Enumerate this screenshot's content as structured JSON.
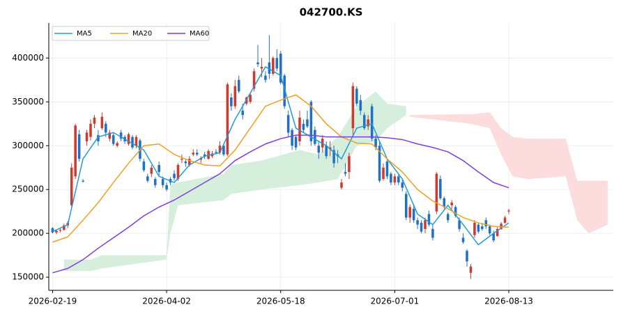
{
  "chart_data": {
    "type": "candlestick",
    "title": "042700.KS",
    "up_color": "#d0392e",
    "down_color": "#2070c8",
    "candles": [
      [
        206000,
        207000,
        200000,
        201000
      ],
      [
        201000,
        204000,
        199000,
        203000
      ],
      [
        203000,
        206000,
        201000,
        204000
      ],
      [
        204000,
        211000,
        203000,
        209000
      ],
      [
        209000,
        214000,
        206000,
        212000
      ],
      [
        232000,
        280000,
        230000,
        275000
      ],
      [
        265000,
        325000,
        262000,
        323000
      ],
      [
        313000,
        318000,
        282000,
        285000
      ],
      [
        260000,
        262000,
        258000,
        259000
      ],
      [
        305000,
        318000,
        300000,
        315000
      ],
      [
        310000,
        330000,
        306000,
        325000
      ],
      [
        325000,
        335000,
        320000,
        332000
      ],
      [
        312000,
        318000,
        300000,
        305000
      ],
      [
        320000,
        338000,
        318000,
        333000
      ],
      [
        325000,
        328000,
        310000,
        315000
      ],
      [
        308000,
        318000,
        305000,
        315000
      ],
      [
        312000,
        314000,
        300000,
        302000
      ],
      [
        300000,
        305000,
        298000,
        303000
      ],
      [
        315000,
        318000,
        305000,
        308000
      ],
      [
        310000,
        312000,
        302000,
        305000
      ],
      [
        302000,
        315000,
        300000,
        313000
      ],
      [
        310000,
        312000,
        296000,
        298000
      ],
      [
        300000,
        312000,
        297000,
        310000
      ],
      [
        306000,
        308000,
        282000,
        285000
      ],
      [
        282000,
        285000,
        270000,
        272000
      ],
      [
        265000,
        268000,
        258000,
        260000
      ],
      [
        268000,
        278000,
        264000,
        275000
      ],
      [
        262000,
        264000,
        252000,
        255000
      ],
      [
        278000,
        282000,
        265000,
        270000
      ],
      [
        262000,
        265000,
        252000,
        255000
      ],
      [
        255000,
        258000,
        248000,
        250000
      ],
      [
        262000,
        264000,
        255000,
        258000
      ],
      [
        268000,
        272000,
        260000,
        263000
      ],
      [
        262000,
        280000,
        260000,
        278000
      ],
      [
        284000,
        290000,
        280000,
        285000
      ],
      [
        282000,
        284000,
        276000,
        280000
      ],
      [
        278000,
        288000,
        276000,
        285000
      ],
      [
        290000,
        296000,
        288000,
        292000
      ],
      [
        292000,
        296000,
        288000,
        290000
      ],
      [
        284000,
        288000,
        280000,
        286000
      ],
      [
        290000,
        293000,
        285000,
        288000
      ],
      [
        285000,
        296000,
        284000,
        294000
      ],
      [
        288000,
        294000,
        286000,
        291000
      ],
      [
        293000,
        296000,
        290000,
        292000
      ],
      [
        292000,
        305000,
        290000,
        300000
      ],
      [
        300000,
        302000,
        288000,
        290000
      ],
      [
        290000,
        372000,
        288000,
        370000
      ],
      [
        355000,
        360000,
        340000,
        345000
      ],
      [
        345000,
        375000,
        342000,
        368000
      ],
      [
        375000,
        380000,
        360000,
        362000
      ],
      [
        340000,
        348000,
        330000,
        335000
      ],
      [
        348000,
        356000,
        346000,
        355000
      ],
      [
        350000,
        360000,
        348000,
        358000
      ],
      [
        365000,
        388000,
        362000,
        385000
      ],
      [
        395000,
        415000,
        390000,
        393000
      ],
      [
        388000,
        400000,
        378000,
        390000
      ],
      [
        380000,
        385000,
        372000,
        375000
      ],
      [
        395000,
        426000,
        376000,
        382000
      ],
      [
        382000,
        402000,
        380000,
        400000
      ],
      [
        400000,
        410000,
        385000,
        388000
      ],
      [
        405000,
        408000,
        370000,
        372000
      ],
      [
        380000,
        382000,
        342000,
        345000
      ],
      [
        335000,
        340000,
        310000,
        315000
      ],
      [
        318000,
        320000,
        295000,
        300000
      ],
      [
        310000,
        312000,
        295000,
        298000
      ],
      [
        305000,
        340000,
        300000,
        332000
      ],
      [
        325000,
        330000,
        315000,
        318000
      ],
      [
        330000,
        340000,
        320000,
        322000
      ],
      [
        350000,
        352000,
        300000,
        305000
      ],
      [
        318000,
        322000,
        300000,
        302000
      ],
      [
        300000,
        305000,
        285000,
        292000
      ],
      [
        298000,
        312000,
        292000,
        308000
      ],
      [
        300000,
        305000,
        285000,
        288000
      ],
      [
        296000,
        305000,
        288000,
        298000
      ],
      [
        295000,
        300000,
        275000,
        280000
      ],
      [
        290000,
        295000,
        280000,
        288000
      ],
      [
        252000,
        262000,
        250000,
        258000
      ],
      [
        270000,
        280000,
        265000,
        268000
      ],
      [
        270000,
        292000,
        262000,
        288000
      ],
      [
        320000,
        372000,
        310000,
        368000
      ],
      [
        365000,
        368000,
        345000,
        348000
      ],
      [
        352000,
        358000,
        335000,
        340000
      ],
      [
        335000,
        338000,
        318000,
        320000
      ],
      [
        322000,
        335000,
        318000,
        330000
      ],
      [
        345000,
        348000,
        305000,
        308000
      ],
      [
        308000,
        312000,
        295000,
        298000
      ],
      [
        300000,
        305000,
        258000,
        260000
      ],
      [
        262000,
        280000,
        260000,
        275000
      ],
      [
        282000,
        285000,
        262000,
        265000
      ],
      [
        268000,
        270000,
        255000,
        258000
      ],
      [
        258000,
        268000,
        255000,
        265000
      ],
      [
        265000,
        267000,
        255000,
        258000
      ],
      [
        258000,
        262000,
        248000,
        252000
      ],
      [
        245000,
        248000,
        215000,
        218000
      ],
      [
        218000,
        233000,
        212000,
        230000
      ],
      [
        228000,
        232000,
        212000,
        215000
      ],
      [
        215000,
        218000,
        205000,
        210000
      ],
      [
        212000,
        215000,
        200000,
        202000
      ],
      [
        205000,
        218000,
        200000,
        215000
      ],
      [
        222000,
        226000,
        208000,
        210000
      ],
      [
        205000,
        210000,
        192000,
        195000
      ],
      [
        225000,
        270000,
        222000,
        268000
      ],
      [
        262000,
        266000,
        238000,
        240000
      ],
      [
        240000,
        242000,
        228000,
        230000
      ],
      [
        222000,
        224000,
        212000,
        215000
      ],
      [
        232000,
        238000,
        228000,
        235000
      ],
      [
        230000,
        232000,
        218000,
        220000
      ],
      [
        215000,
        218000,
        202000,
        205000
      ],
      [
        195000,
        200000,
        188000,
        190000
      ],
      [
        180000,
        182000,
        162000,
        168000
      ],
      [
        155000,
        165000,
        148000,
        162000
      ],
      [
        198000,
        215000,
        195000,
        212000
      ],
      [
        210000,
        212000,
        200000,
        202000
      ],
      [
        208000,
        212000,
        203000,
        205000
      ],
      [
        215000,
        218000,
        205000,
        208000
      ],
      [
        208000,
        210000,
        198000,
        200000
      ],
      [
        200000,
        203000,
        190000,
        192000
      ],
      [
        197000,
        207000,
        196000,
        205000
      ],
      [
        205000,
        213000,
        204000,
        211000
      ],
      [
        212000,
        220000,
        211000,
        218000
      ],
      [
        225000,
        228000,
        222000,
        226000
      ]
    ],
    "lines": [
      {
        "name": "MA5",
        "color": "#1f9bd7",
        "x": [
          0,
          4,
          8,
          12,
          16,
          20,
          24,
          28,
          32,
          36,
          40,
          44,
          48,
          52,
          56,
          60,
          64,
          68,
          72,
          76,
          80,
          84,
          88,
          92,
          96,
          100,
          104,
          108,
          112,
          116,
          120
        ],
        "values": [
          202000,
          210000,
          285000,
          310000,
          315000,
          305000,
          295000,
          265000,
          258000,
          278000,
          288000,
          292000,
          330000,
          360000,
          390000,
          380000,
          320000,
          310000,
          300000,
          285000,
          320000,
          325000,
          285000,
          262000,
          222000,
          210000,
          232000,
          210000,
          187000,
          200000,
          212000
        ]
      },
      {
        "name": "MA20",
        "color": "#f0a020",
        "x": [
          0,
          4,
          8,
          12,
          16,
          20,
          24,
          28,
          32,
          36,
          40,
          44,
          48,
          52,
          56,
          60,
          64,
          68,
          72,
          76,
          80,
          84,
          88,
          92,
          96,
          100,
          104,
          108,
          112,
          116,
          120
        ],
        "values": [
          190000,
          196000,
          215000,
          235000,
          258000,
          280000,
          300000,
          302000,
          290000,
          283000,
          278000,
          277000,
          295000,
          320000,
          345000,
          352000,
          358000,
          345000,
          325000,
          310000,
          303000,
          302000,
          285000,
          270000,
          250000,
          237000,
          228000,
          218000,
          212000,
          208000,
          207000
        ]
      },
      {
        "name": "MA60",
        "color": "#7e3ee0",
        "x": [
          0,
          4,
          8,
          12,
          16,
          20,
          24,
          28,
          32,
          36,
          40,
          44,
          48,
          52,
          56,
          60,
          64,
          68,
          72,
          76,
          80,
          84,
          88,
          92,
          96,
          100,
          104,
          108,
          112,
          116,
          120
        ],
        "values": [
          155000,
          160000,
          170000,
          183000,
          195000,
          207000,
          220000,
          230000,
          238000,
          248000,
          258000,
          268000,
          283000,
          293000,
          302000,
          308000,
          312000,
          312000,
          310000,
          310000,
          310000,
          310000,
          309000,
          307000,
          302000,
          298000,
          293000,
          283000,
          270000,
          258000,
          252000
        ]
      }
    ],
    "cloud": [
      {
        "color": "#d6efdc",
        "x": [
          3,
          10,
          13,
          30,
          31,
          33,
          45,
          47,
          55,
          65,
          70,
          75,
          80,
          85,
          88,
          93
        ],
        "upper": [
          170000,
          170000,
          175000,
          175000,
          255000,
          258000,
          268000,
          278000,
          283000,
          295000,
          290000,
          310000,
          345000,
          362000,
          348000,
          345000
        ],
        "lower": [
          157000,
          157000,
          160000,
          170000,
          200000,
          232000,
          238000,
          245000,
          250000,
          255000,
          258000,
          262000,
          300000,
          305000,
          320000,
          335000
        ]
      },
      {
        "color": "#fcdcdc",
        "x": [
          94,
          110,
          115,
          118,
          121,
          125,
          135,
          138,
          141,
          146
        ],
        "upper": [
          335000,
          336000,
          338000,
          320000,
          310000,
          308000,
          308000,
          260000,
          260000,
          260000
        ],
        "lower": [
          333000,
          325000,
          320000,
          290000,
          265000,
          262000,
          265000,
          215000,
          200000,
          210000
        ]
      }
    ],
    "xlim": [
      -1,
      147.5
    ],
    "xticks": [
      {
        "value": 0,
        "label": "2026-02-19"
      },
      {
        "value": 30,
        "label": "2026-04-02"
      },
      {
        "value": 60,
        "label": "2026-05-18"
      },
      {
        "value": 90,
        "label": "2026-07-01"
      },
      {
        "value": 120,
        "label": "2026-08-13"
      }
    ],
    "ylim": [
      135000,
      440000
    ],
    "yticks": [
      150000,
      200000,
      250000,
      300000,
      350000,
      400000
    ],
    "grid": true,
    "legend": "upper left"
  }
}
